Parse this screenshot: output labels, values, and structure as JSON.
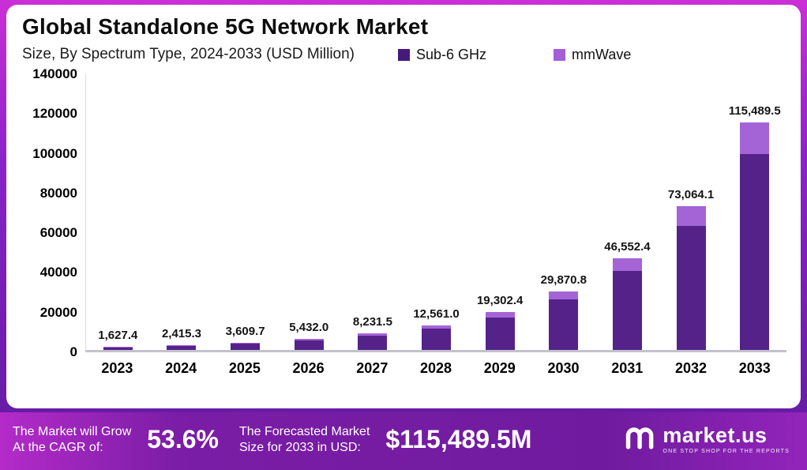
{
  "header": {
    "title": "Global Standalone 5G Network Market",
    "subtitle": "Size, By Spectrum Type, 2024-2033 (USD Million)"
  },
  "colors": {
    "sub6": "#55228a",
    "mmwave": "#a464d6",
    "legend_sub6": "#45197a",
    "legend_mmwave": "#a45fd6",
    "axis_line": "#c2c2cc",
    "footer_purple": "#6f1b9f"
  },
  "legend": [
    {
      "label": "Sub-6 GHz",
      "color": "#45197a"
    },
    {
      "label": "mmWave",
      "color": "#a45fd6"
    }
  ],
  "chart_data": {
    "type": "bar",
    "stacked": true,
    "title": "Global Standalone 5G Network Market Size, By Spectrum Type, 2024-2033 (USD Million)",
    "xlabel": "",
    "ylabel": "",
    "grid": false,
    "legend_position": "top",
    "categories": [
      "2023",
      "2024",
      "2025",
      "2026",
      "2027",
      "2028",
      "2029",
      "2030",
      "2031",
      "2032",
      "2033"
    ],
    "series": [
      {
        "name": "Sub-6 GHz",
        "values": [
          1399.6,
          2077.2,
          3104.3,
          4671.5,
          7079.1,
          10802.5,
          16600.1,
          25688.9,
          40035.1,
          62835.1,
          99320.9
        ]
      },
      {
        "name": "mmWave",
        "values": [
          227.8,
          338.1,
          505.4,
          760.5,
          1152.4,
          1758.5,
          2702.3,
          4181.9,
          6517.3,
          10229.0,
          16168.6
        ]
      }
    ],
    "totals": [
      1627.4,
      2415.3,
      3609.7,
      5432.0,
      8231.5,
      12561.0,
      19302.4,
      29870.8,
      46552.4,
      73064.1,
      115489.5
    ],
    "total_labels": [
      "1,627.4",
      "2,415.3",
      "3,609.7",
      "5,432.0",
      "8,231.5",
      "12,561.0",
      "19,302.4",
      "29,870.8",
      "46,552.4",
      "73,064.1",
      "115,489.5"
    ],
    "ylim": [
      0,
      140000
    ],
    "yticks": [
      0,
      20000,
      40000,
      60000,
      80000,
      100000,
      120000,
      140000
    ],
    "ytick_labels": [
      "0",
      "20000",
      "40000",
      "60000",
      "80000",
      "100000",
      "120000",
      "140000"
    ]
  },
  "footer": {
    "cagr_line1": "The Market will Grow",
    "cagr_line2": "At the CAGR of:",
    "cagr_value": "53.6%",
    "forecast_line1": "The Forecasted Market",
    "forecast_line2": "Size for 2033 in USD:",
    "forecast_value": "$115,489.5M",
    "brand": "market.us",
    "brand_tagline": "ONE STOP SHOP FOR THE REPORTS"
  }
}
